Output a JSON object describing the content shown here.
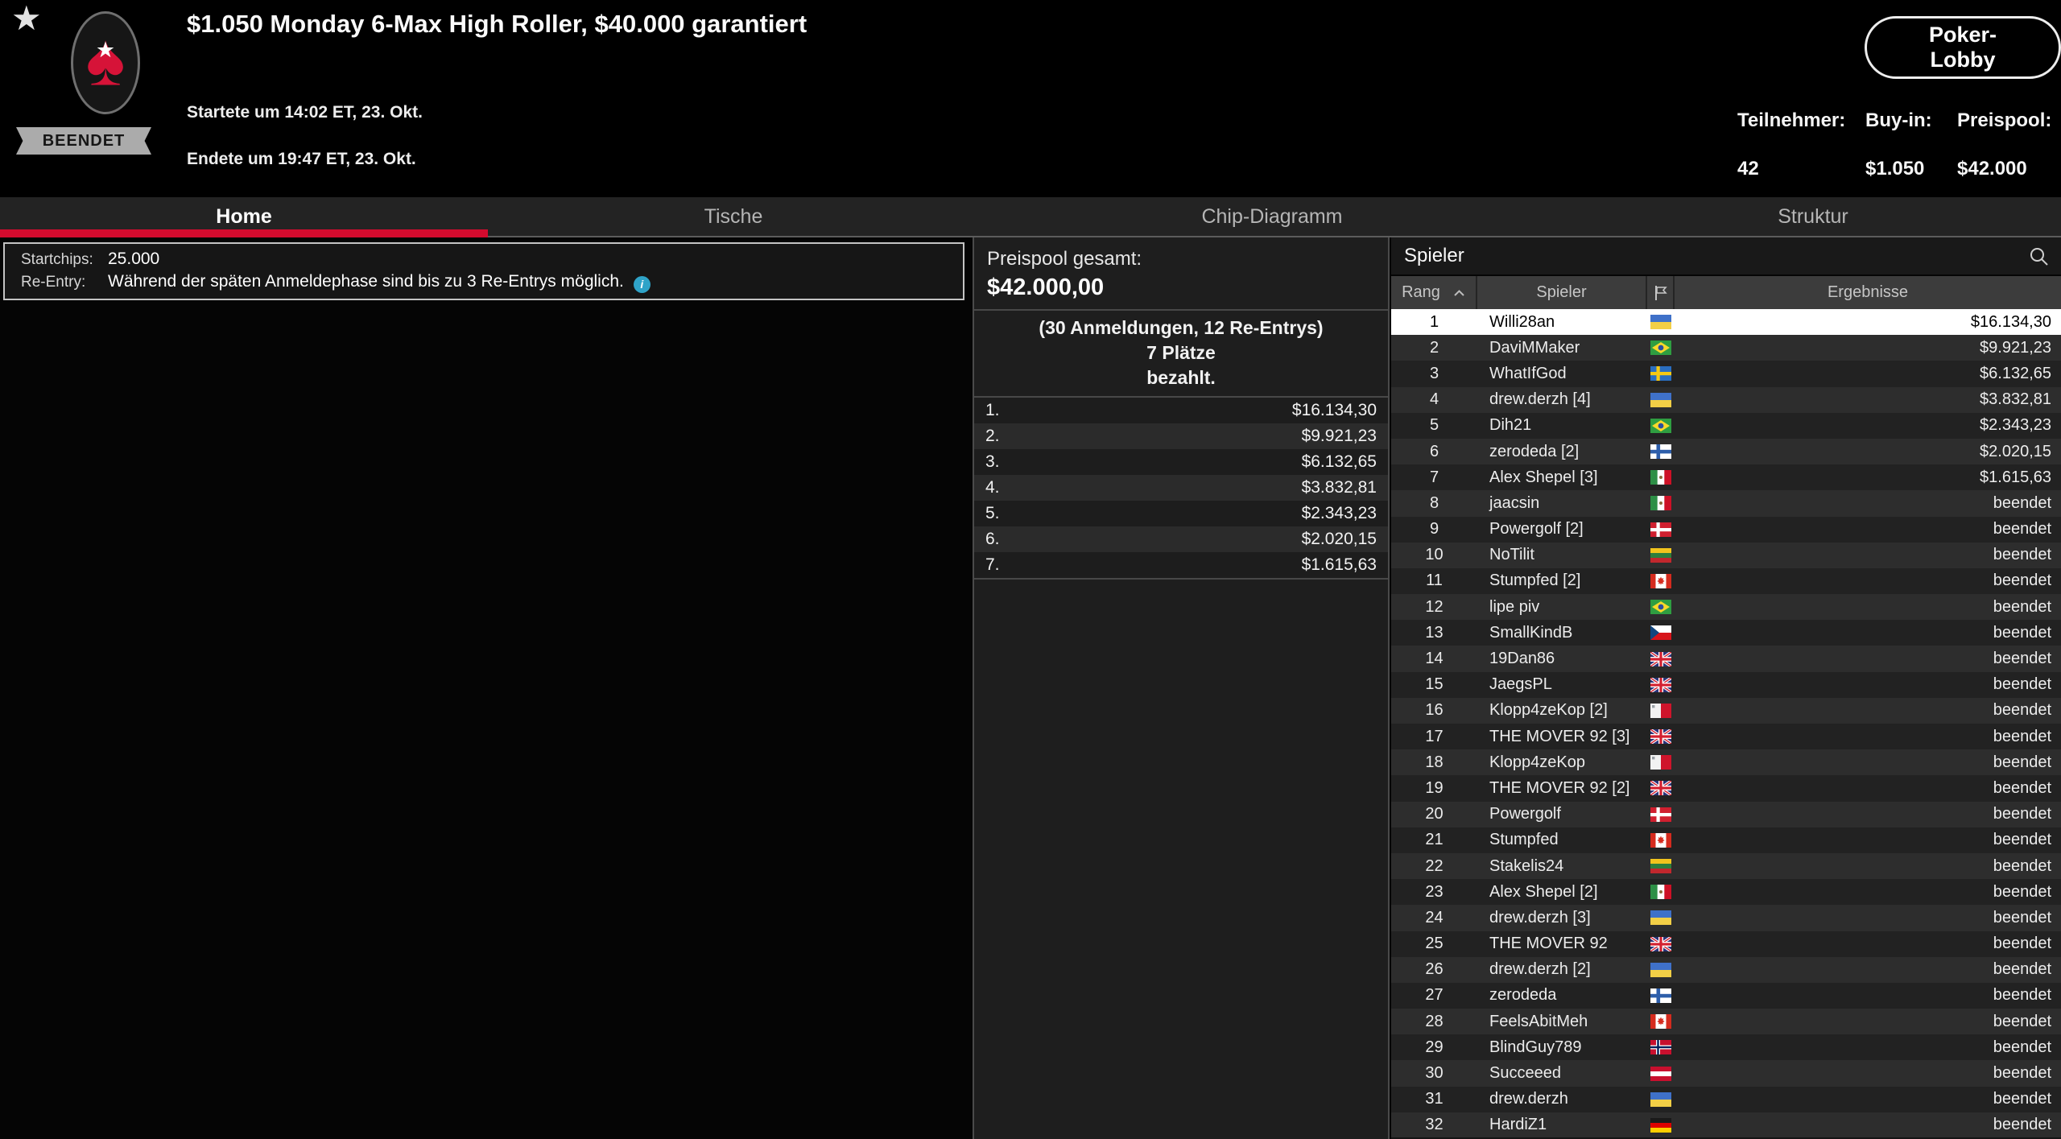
{
  "header": {
    "title": "$1.050 Monday 6-Max High Roller, $40.000 garantiert",
    "status_badge": "BEENDET",
    "started": "Startete um 14:02 ET, 23. Okt.",
    "ended": "Endete um 19:47 ET, 23. Okt.",
    "lobby_button": "Poker-Lobby",
    "stats": [
      {
        "label": "Teilnehmer:",
        "value": "42"
      },
      {
        "label": "Buy-in:",
        "value": "$1.050"
      },
      {
        "label": "Preispool:",
        "value": "$42.000"
      }
    ]
  },
  "icons": {
    "favorite": "star",
    "logo": "pokerstars-spade",
    "search": "magnifier",
    "sort": "chevron-up",
    "flag_column": "flag-outline",
    "info": "i"
  },
  "tabs": [
    {
      "label": "Home",
      "active": true
    },
    {
      "label": "Tische",
      "active": false
    },
    {
      "label": "Chip-Diagramm",
      "active": false
    },
    {
      "label": "Struktur",
      "active": false
    }
  ],
  "info_box": {
    "rows": [
      {
        "label": "Startchips:",
        "value": "25.000",
        "info_icon": false
      },
      {
        "label": "Re-Entry:",
        "value": "Während der späten Anmeldephase sind bis zu 3 Re-Entrys möglich.",
        "info_icon": true
      }
    ]
  },
  "prize_panel": {
    "total_label": "Preispool gesamt:",
    "total_value": "$42.000,00",
    "entries_line": "(30 Anmeldungen, 12 Re-Entrys)",
    "places_line1": "7 Plätze",
    "places_line2": "bezahlt.",
    "prizes": [
      {
        "rank": "1.",
        "amount": "$16.134,30"
      },
      {
        "rank": "2.",
        "amount": "$9.921,23"
      },
      {
        "rank": "3.",
        "amount": "$6.132,65"
      },
      {
        "rank": "4.",
        "amount": "$3.832,81"
      },
      {
        "rank": "5.",
        "amount": "$2.343,23"
      },
      {
        "rank": "6.",
        "amount": "$2.020,15"
      },
      {
        "rank": "7.",
        "amount": "$1.615,63"
      }
    ]
  },
  "players_panel": {
    "title": "Spieler",
    "columns": {
      "rank": "Rang",
      "player": "Spieler",
      "results": "Ergebnisse"
    },
    "rows": [
      {
        "rank": "1",
        "name": "Willi28an",
        "country": "ua",
        "result": "$16.134,30",
        "selected": true
      },
      {
        "rank": "2",
        "name": "DaviMMaker",
        "country": "br",
        "result": "$9.921,23",
        "selected": false
      },
      {
        "rank": "3",
        "name": "WhatIfGod",
        "country": "se",
        "result": "$6.132,65",
        "selected": false
      },
      {
        "rank": "4",
        "name": "drew.derzh [4]",
        "country": "ua",
        "result": "$3.832,81",
        "selected": false
      },
      {
        "rank": "5",
        "name": "Dih21",
        "country": "br",
        "result": "$2.343,23",
        "selected": false
      },
      {
        "rank": "6",
        "name": "zerodeda [2]",
        "country": "fi",
        "result": "$2.020,15",
        "selected": false
      },
      {
        "rank": "7",
        "name": "Alex Shepel [3]",
        "country": "mx",
        "result": "$1.615,63",
        "selected": false
      },
      {
        "rank": "8",
        "name": "jaacsin",
        "country": "mx",
        "result": "beendet",
        "selected": false
      },
      {
        "rank": "9",
        "name": "Powergolf [2]",
        "country": "dk",
        "result": "beendet",
        "selected": false
      },
      {
        "rank": "10",
        "name": "NoTilit",
        "country": "lt",
        "result": "beendet",
        "selected": false
      },
      {
        "rank": "11",
        "name": "Stumpfed [2]",
        "country": "ca",
        "result": "beendet",
        "selected": false
      },
      {
        "rank": "12",
        "name": "lipe piv",
        "country": "br",
        "result": "beendet",
        "selected": false
      },
      {
        "rank": "13",
        "name": "SmallKindB",
        "country": "cz",
        "result": "beendet",
        "selected": false
      },
      {
        "rank": "14",
        "name": "19Dan86",
        "country": "gb",
        "result": "beendet",
        "selected": false
      },
      {
        "rank": "15",
        "name": "JaegsPL",
        "country": "gb",
        "result": "beendet",
        "selected": false
      },
      {
        "rank": "16",
        "name": "Klopp4zeKop [2]",
        "country": "mt",
        "result": "beendet",
        "selected": false
      },
      {
        "rank": "17",
        "name": "THE MOVER 92 [3]",
        "country": "gb",
        "result": "beendet",
        "selected": false
      },
      {
        "rank": "18",
        "name": "Klopp4zeKop",
        "country": "mt",
        "result": "beendet",
        "selected": false
      },
      {
        "rank": "19",
        "name": "THE MOVER 92 [2]",
        "country": "gb",
        "result": "beendet",
        "selected": false
      },
      {
        "rank": "20",
        "name": "Powergolf",
        "country": "dk",
        "result": "beendet",
        "selected": false
      },
      {
        "rank": "21",
        "name": "Stumpfed",
        "country": "ca",
        "result": "beendet",
        "selected": false
      },
      {
        "rank": "22",
        "name": "Stakelis24",
        "country": "lt",
        "result": "beendet",
        "selected": false
      },
      {
        "rank": "23",
        "name": "Alex Shepel [2]",
        "country": "mx",
        "result": "beendet",
        "selected": false
      },
      {
        "rank": "24",
        "name": "drew.derzh [3]",
        "country": "ua",
        "result": "beendet",
        "selected": false
      },
      {
        "rank": "25",
        "name": "THE MOVER 92",
        "country": "gb",
        "result": "beendet",
        "selected": false
      },
      {
        "rank": "26",
        "name": "drew.derzh [2]",
        "country": "ua",
        "result": "beendet",
        "selected": false
      },
      {
        "rank": "27",
        "name": "zerodeda",
        "country": "fi",
        "result": "beendet",
        "selected": false
      },
      {
        "rank": "28",
        "name": "FeelsAbitMeh",
        "country": "ca",
        "result": "beendet",
        "selected": false
      },
      {
        "rank": "29",
        "name": "BlindGuy789",
        "country": "no",
        "result": "beendet",
        "selected": false
      },
      {
        "rank": "30",
        "name": "Succeeed",
        "country": "at",
        "result": "beendet",
        "selected": false
      },
      {
        "rank": "31",
        "name": "drew.derzh",
        "country": "ua",
        "result": "beendet",
        "selected": false
      },
      {
        "rank": "32",
        "name": "HardiZ1",
        "country": "de",
        "result": "beendet",
        "selected": false
      }
    ]
  },
  "colors": {
    "accent_red": "#d40b2e",
    "info_icon_teal": "#2fa3c8",
    "spade_red": "#d61338",
    "selected_row": "#ffffff"
  }
}
